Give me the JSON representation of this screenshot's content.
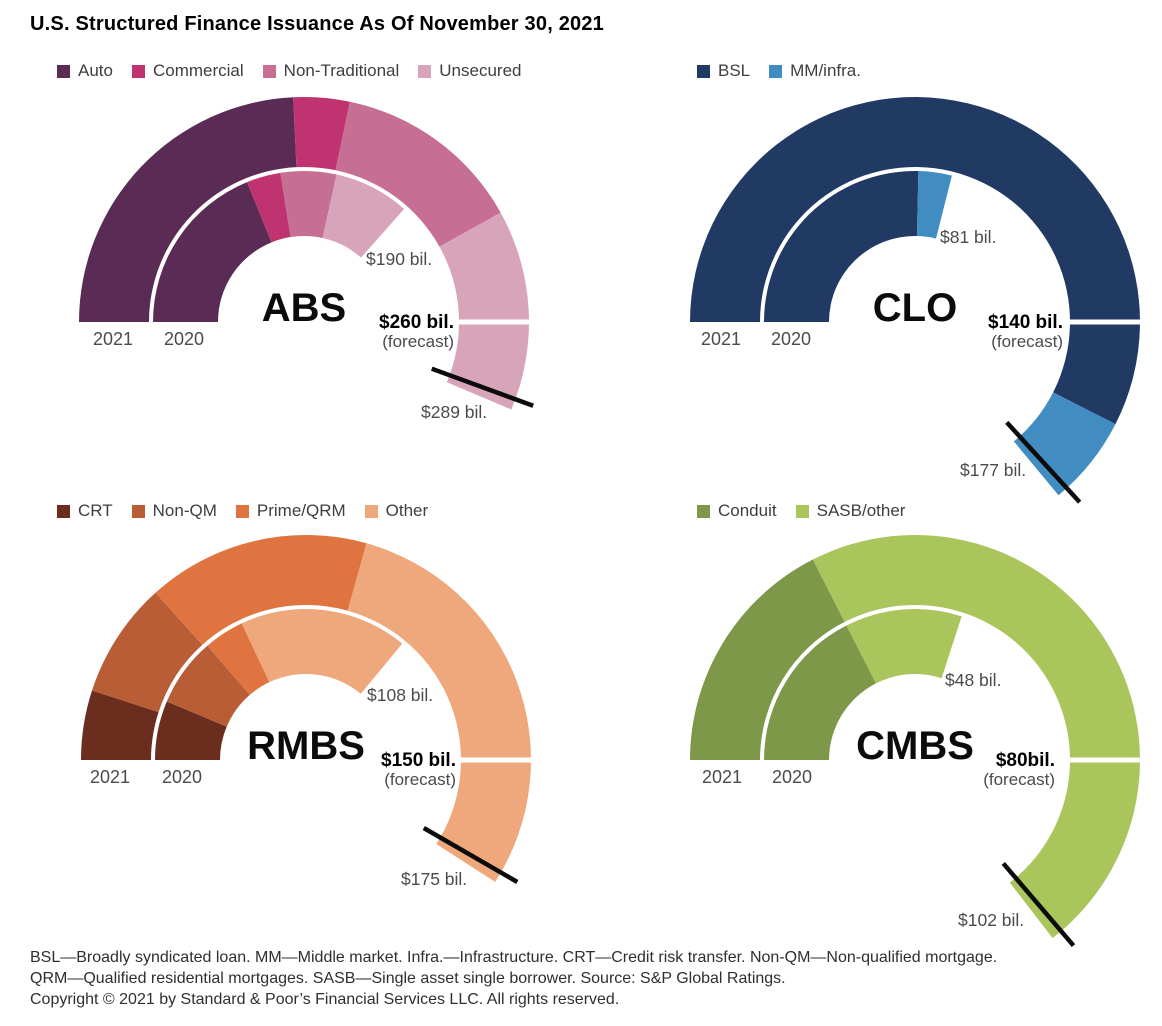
{
  "title": "U.S. Structured Finance Issuance As Of November 30, 2021",
  "chart_data": [
    {
      "type": "gauge-donut",
      "name": "ABS",
      "unit": "$ bil.",
      "forecast_value": 260,
      "scale_note": "half-circle (180 deg) ends at forecast value; outer ring = 2021 YTD, inner ring = 2020",
      "legend": [
        {
          "label": "Auto",
          "color": "#592b55"
        },
        {
          "label": "Commercial",
          "color": "#bf3470"
        },
        {
          "label": "Non-Traditional",
          "color": "#c76e95"
        },
        {
          "label": "Unsecured",
          "color": "#d8a4ba"
        }
      ],
      "series": [
        {
          "name": "2021",
          "ring": "outer",
          "total": 289,
          "values": [
            126,
            21,
            71,
            71
          ]
        },
        {
          "name": "2020",
          "ring": "inner",
          "total": 190,
          "values": [
            98,
            19,
            31,
            42
          ]
        }
      ],
      "labels": {
        "center": "ABS",
        "forecast": "$260 bil.",
        "forecast_sub": "(forecast)",
        "outer_year": "2021",
        "inner_year": "2020",
        "outer_total": "$289 bil.",
        "inner_total": "$190 bil."
      }
    },
    {
      "type": "gauge-donut",
      "name": "CLO",
      "unit": "$ bil.",
      "forecast_value": 140,
      "scale_note": "half-circle (180 deg) ends at forecast value; outer ring = 2021 YTD, inner ring = 2020",
      "legend": [
        {
          "label": "BSL",
          "color": "#213a64"
        },
        {
          "label": "MM/infra.",
          "color": "#418cc0"
        }
      ],
      "series": [
        {
          "name": "2021",
          "ring": "outer",
          "total": 177,
          "values": [
            161,
            16
          ]
        },
        {
          "name": "2020",
          "ring": "inner",
          "total": 81,
          "values": [
            71,
            10
          ]
        }
      ],
      "labels": {
        "center": "CLO",
        "forecast": "$140 bil.",
        "forecast_sub": "(forecast)",
        "outer_year": "2021",
        "inner_year": "2020",
        "outer_total": "$177 bil.",
        "inner_total": "$81 bil."
      }
    },
    {
      "type": "gauge-donut",
      "name": "RMBS",
      "unit": "$ bil.",
      "forecast_value": 150,
      "scale_note": "half-circle (180 deg) ends at forecast value; outer ring = 2021 YTD, inner ring = 2020",
      "legend": [
        {
          "label": "CRT",
          "color": "#6b2d1d"
        },
        {
          "label": "Non-QM",
          "color": "#b95d36"
        },
        {
          "label": "Prime/QRM",
          "color": "#df7440"
        },
        {
          "label": "Other",
          "color": "#efa77c"
        }
      ],
      "series": [
        {
          "name": "2021",
          "ring": "outer",
          "total": 175,
          "values": [
            15,
            25,
            48,
            87
          ]
        },
        {
          "name": "2020",
          "ring": "inner",
          "total": 108,
          "values": [
            19,
            22,
            13,
            54
          ]
        }
      ],
      "labels": {
        "center": "RMBS",
        "forecast": "$150 bil.",
        "forecast_sub": "(forecast)",
        "outer_year": "2021",
        "inner_year": "2020",
        "outer_total": "$175 bil.",
        "inner_total": "$108 bil."
      }
    },
    {
      "type": "gauge-donut",
      "name": "CMBS",
      "unit": "$ bil.",
      "forecast_value": 80,
      "scale_note": "half-circle (180 deg) ends at forecast value; outer ring = 2021 YTD, inner ring = 2020",
      "legend": [
        {
          "label": "Conduit",
          "color": "#7d9849"
        },
        {
          "label": "SASB/other",
          "color": "#a9c55c"
        }
      ],
      "series": [
        {
          "name": "2021",
          "ring": "outer",
          "total": 102,
          "values": [
            28,
            74
          ]
        },
        {
          "name": "2020",
          "ring": "inner",
          "total": 48,
          "values": [
            28,
            20
          ]
        }
      ],
      "labels": {
        "center": "CMBS",
        "forecast": "$80bil.",
        "forecast_sub": "(forecast)",
        "outer_year": "2021",
        "inner_year": "2020",
        "outer_total": "$102 bil.",
        "inner_total": "$48 bil."
      }
    }
  ],
  "footnote": {
    "line1": "BSL—Broadly syndicated loan. MM—Middle market. Infra.—Infrastructure. CRT—Credit risk transfer. Non-QM—Non-qualified mortgage.",
    "line2": "QRM—Qualified residential mortgages. SASB—Single asset single borrower. Source: S&P Global Ratings.",
    "line3": "Copyright © 2021 by Standard & Poor’s Financial Services LLC. All rights reserved."
  },
  "style_colors": {
    "needle": "#0b0b0b",
    "forecast_gap": "#ffffff",
    "label_gray": "#4a4b4e"
  }
}
